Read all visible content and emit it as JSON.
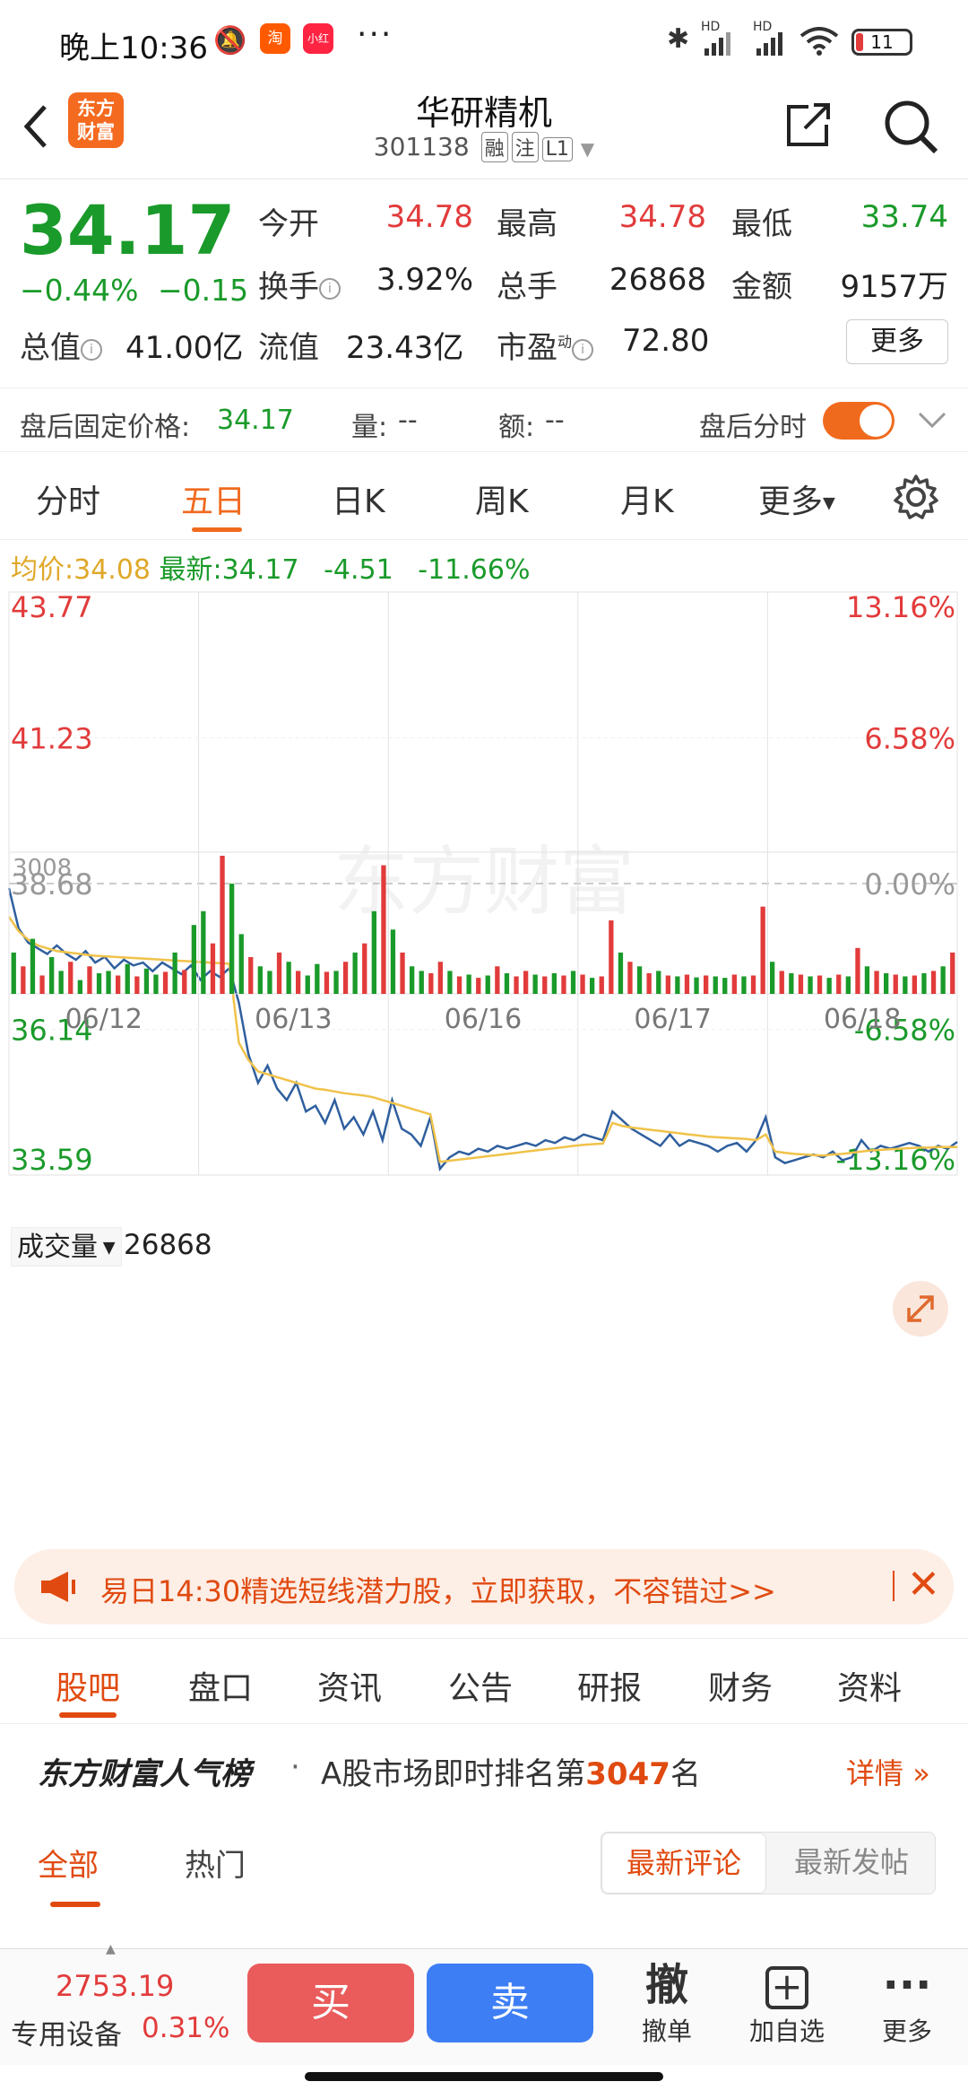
{
  "status_bar": {
    "time": "晚上10:36",
    "signal1": "HD",
    "signal2": "HD",
    "battery": "11"
  },
  "header": {
    "logo": "东方财富",
    "name": "华研精机",
    "code": "301138",
    "tags": [
      "融",
      "注",
      "L1"
    ]
  },
  "quote": {
    "price": "34.17",
    "change_pct": "−0.44%",
    "change": "−0.15",
    "rows": [
      [
        {
          "label": "今开",
          "value": "34.78",
          "tone": "red"
        },
        {
          "label": "最高",
          "value": "34.78",
          "tone": "red"
        },
        {
          "label": "最低",
          "value": "33.74",
          "tone": "green"
        }
      ],
      [
        {
          "label": "换手",
          "value": "3.92%",
          "tone": "black"
        },
        {
          "label": "总手",
          "value": "26868",
          "tone": "black"
        },
        {
          "label": "金额",
          "value": "9157万",
          "tone": "black"
        }
      ]
    ],
    "total_value_label": "总值",
    "total_value": "41.00亿",
    "float_label": "流值",
    "float_value": "23.43亿",
    "pe_label": "市盈",
    "pe_sup": "动",
    "pe_value": "72.80",
    "more": "更多"
  },
  "after_hours": {
    "label": "盘后固定价格:",
    "price": "34.17",
    "vol_label": "量:",
    "vol": "--",
    "amt_label": "额:",
    "amt": "--",
    "toggle_label": "盘后分时"
  },
  "period_tabs": [
    "分时",
    "五日",
    "日K",
    "周K",
    "月K",
    "更多"
  ],
  "chart_header": {
    "avg_label": "均价:",
    "avg": "34.08",
    "latest_label": "最新:",
    "latest": "34.17",
    "chg": "-4.51",
    "chg_pct": "-11.66%"
  },
  "watermark": "东方财富",
  "volume_label": "成交量",
  "volume_total": "26868",
  "colors": {
    "accent": "#f06a1e",
    "up": "#e23b3b",
    "down": "#1a9a2a",
    "price_line": "#2f5f9e",
    "avg_line": "#f0c24a"
  },
  "chart_data": {
    "type": "line",
    "title": "",
    "y_left_labels": [
      "43.77",
      "41.23",
      "38.68",
      "36.14",
      "33.59"
    ],
    "y_right_labels": [
      "13.16%",
      "6.58%",
      "0.00%",
      "-6.58%",
      "-13.16%"
    ],
    "ylim": [
      33.59,
      43.77
    ],
    "prev_close": 38.68,
    "x_labels": [
      "06/12",
      "06/13",
      "06/16",
      "06/17",
      "06/18"
    ],
    "series": [
      {
        "values": [
          38.6,
          37.9,
          37.65,
          37.55,
          37.45,
          37.6,
          37.45,
          37.35,
          37.5,
          37.3,
          37.4,
          37.2,
          37.35,
          37.25,
          37.3,
          37.15,
          37.3,
          37.2,
          37.1,
          37.25,
          37.0,
          37.15,
          37.05,
          37.2,
          36.6,
          35.7,
          35.2,
          35.5,
          35.1,
          34.9,
          35.2,
          34.7,
          34.8,
          34.5,
          34.9,
          34.4,
          34.6,
          34.3,
          34.7,
          34.2,
          34.9,
          34.4,
          34.3,
          34.1,
          34.6,
          33.7,
          33.9,
          34.0,
          33.95,
          34.05,
          34.0,
          34.1,
          34.05,
          34.1,
          34.15,
          34.1,
          34.2,
          34.15,
          34.25,
          34.2,
          34.3,
          34.25,
          34.2,
          34.7,
          34.55,
          34.4,
          34.3,
          34.2,
          34.1,
          34.3,
          34.1,
          34.2,
          34.15,
          34.1,
          34.0,
          34.1,
          34.15,
          34.0,
          34.2,
          34.6,
          33.9,
          33.8,
          33.85,
          33.9,
          33.95,
          33.9,
          34.0,
          33.85,
          33.9,
          34.2,
          34.0,
          34.1,
          34.05,
          34.1,
          34.15,
          34.1,
          34.0,
          34.1,
          34.05,
          34.17
        ]
      },
      {
        "values": [
          38.1,
          37.85,
          37.7,
          37.6,
          37.55,
          37.5,
          37.48,
          37.46,
          37.44,
          37.42,
          37.41,
          37.4,
          37.39,
          37.38,
          37.37,
          37.36,
          37.35,
          37.34,
          37.33,
          37.32,
          37.31,
          37.3,
          37.29,
          37.28,
          35.9,
          35.6,
          35.4,
          35.35,
          35.3,
          35.25,
          35.2,
          35.15,
          35.1,
          35.08,
          35.05,
          35.02,
          35.0,
          34.98,
          34.95,
          34.9,
          34.85,
          34.8,
          34.75,
          34.7,
          34.65,
          33.82,
          33.84,
          33.86,
          33.88,
          33.9,
          33.92,
          33.94,
          33.96,
          33.98,
          34.0,
          34.02,
          34.04,
          34.06,
          34.08,
          34.1,
          34.12,
          34.13,
          34.14,
          34.5,
          34.45,
          34.42,
          34.4,
          34.38,
          34.36,
          34.34,
          34.32,
          34.3,
          34.28,
          34.26,
          34.25,
          34.24,
          34.23,
          34.22,
          34.2,
          34.3,
          34.0,
          33.98,
          33.96,
          33.95,
          33.94,
          33.93,
          33.95,
          33.96,
          33.98,
          34.0,
          34.02,
          34.03,
          34.04,
          34.05,
          34.06,
          34.07,
          34.07,
          34.08,
          34.08,
          34.08
        ]
      }
    ],
    "volume": {
      "max_label": "3008",
      "values": [
        900,
        600,
        1200,
        400,
        800,
        500,
        700,
        300,
        600,
        450,
        500,
        400,
        650,
        380,
        550,
        420,
        480,
        900,
        520,
        1500,
        1800,
        1100,
        3008,
        2400,
        1300,
        800,
        600,
        500,
        900,
        700,
        500,
        400,
        650,
        480,
        500,
        700,
        900,
        1100,
        1800,
        2800,
        1400,
        900,
        600,
        500,
        450,
        700,
        500,
        380,
        420,
        350,
        400,
        600,
        450,
        380,
        500,
        420,
        380,
        450,
        400,
        500,
        420,
        350,
        380,
        1600,
        900,
        700,
        600,
        450,
        500,
        400,
        380,
        420,
        360,
        400,
        380,
        350,
        420,
        380,
        400,
        1900,
        700,
        500,
        450,
        420,
        380,
        400,
        350,
        420,
        380,
        1000,
        600,
        500,
        450,
        420,
        380,
        400,
        450,
        500,
        600,
        900
      ],
      "colors": [
        "g",
        "r",
        "g",
        "r",
        "g",
        "g",
        "r",
        "g",
        "r",
        "g",
        "g",
        "r",
        "g",
        "r",
        "g",
        "g",
        "r",
        "g",
        "r",
        "g",
        "g",
        "r",
        "r",
        "g",
        "g",
        "r",
        "g",
        "g",
        "r",
        "g",
        "r",
        "g",
        "g",
        "r",
        "g",
        "r",
        "g",
        "r",
        "g",
        "r",
        "g",
        "r",
        "g",
        "g",
        "r",
        "r",
        "g",
        "r",
        "g",
        "r",
        "g",
        "r",
        "g",
        "r",
        "r",
        "g",
        "r",
        "g",
        "r",
        "g",
        "r",
        "g",
        "r",
        "r",
        "g",
        "r",
        "g",
        "r",
        "g",
        "r",
        "g",
        "r",
        "g",
        "r",
        "g",
        "g",
        "r",
        "g",
        "r",
        "r",
        "g",
        "r",
        "g",
        "r",
        "g",
        "r",
        "g",
        "r",
        "g",
        "r",
        "g",
        "r",
        "g",
        "r",
        "g",
        "r",
        "g",
        "r",
        "g",
        "r"
      ]
    }
  },
  "banner": {
    "text": "易日14:30精选短线潜力股，立即获取，不容错过>>"
  },
  "lower_tabs": [
    "股吧",
    "盘口",
    "资讯",
    "公告",
    "研报",
    "财务",
    "资料"
  ],
  "rank": {
    "title": "东方财富人气榜",
    "text": "A股市场即时排名第",
    "number": "3047",
    "suffix": "名",
    "detail": "详情"
  },
  "filters": {
    "all": "全部",
    "hot": "热门",
    "latest_comment": "最新评论",
    "latest_post": "最新发帖"
  },
  "bottom": {
    "index_value": "2753.19",
    "index_name": "专用设备",
    "index_pct": "0.31%",
    "buy": "买",
    "sell": "卖",
    "items": [
      {
        "icon": "撤",
        "label": "撤单"
      },
      {
        "icon": "+",
        "label": "加自选"
      },
      {
        "icon": "···",
        "label": "更多"
      }
    ]
  }
}
